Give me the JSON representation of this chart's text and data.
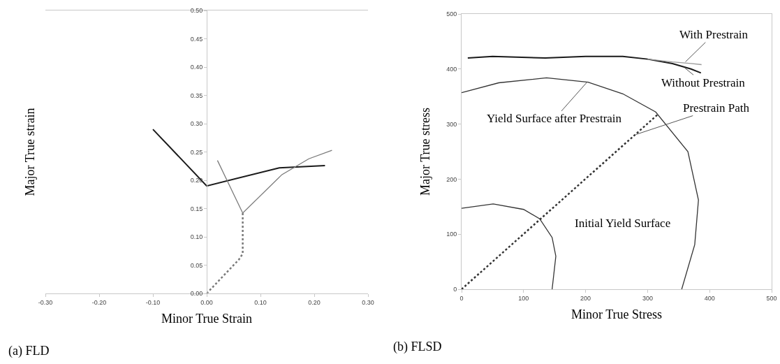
{
  "chart_data": [
    {
      "type": "line",
      "xlabel": "Minor True Strain",
      "ylabel": "Major True strain",
      "annotations": [
        "(a) FLD"
      ],
      "xlim": [
        -0.3,
        0.3
      ],
      "ylim": [
        0,
        0.5
      ],
      "xticks": [
        {
          "value": -0.3,
          "label": "-0.30"
        },
        {
          "value": -0.2,
          "label": "-0.20"
        },
        {
          "value": -0.1,
          "label": "-0.10"
        },
        {
          "value": 0,
          "label": "0.00"
        },
        {
          "value": 0.1,
          "label": "0.10"
        },
        {
          "value": 0.2,
          "label": "0.20"
        },
        {
          "value": 0.3,
          "label": "0.30"
        }
      ],
      "yticks": [
        {
          "value": 0,
          "label": "0.00"
        },
        {
          "value": 0.05,
          "label": "0.05"
        },
        {
          "value": 0.1,
          "label": "0.10"
        },
        {
          "value": 0.15,
          "label": "0.15"
        },
        {
          "value": 0.2,
          "label": "0.20"
        },
        {
          "value": 0.25,
          "label": "0.25"
        },
        {
          "value": 0.3,
          "label": "0.30"
        },
        {
          "value": 0.35,
          "label": "0.35"
        },
        {
          "value": 0.4,
          "label": "0.40"
        },
        {
          "value": 0.45,
          "label": "0.45"
        },
        {
          "value": 0.5,
          "label": "0.50"
        }
      ],
      "marker": "none",
      "series": [
        {
          "color": "#1a1a1a",
          "x": [
            -0.1,
            0,
            0.135,
            0.22
          ],
          "values": [
            0.29,
            0.19,
            0.222,
            0.226
          ],
          "line_style": "solid"
        },
        {
          "color": "#7a7a7a",
          "x": [
            0.02,
            0.067,
            0.14,
            0.19,
            0.233
          ],
          "values": [
            0.235,
            0.142,
            0.21,
            0.238,
            0.253
          ],
          "line_style": "solid"
        },
        {
          "color": "#7a7a7a",
          "x": [
            0,
            0.03,
            0.06,
            0.067,
            0.067
          ],
          "values": [
            0,
            0.03,
            0.06,
            0.07,
            0.142
          ],
          "line_style": "dotted"
        }
      ]
    },
    {
      "type": "line",
      "xlabel": "Minor True Stress",
      "ylabel": "Major True stress",
      "xlim": [
        0,
        500
      ],
      "ylim": [
        0,
        500
      ],
      "xticks": [
        0,
        100,
        200,
        300,
        400,
        500
      ],
      "yticks": [
        0,
        100,
        200,
        300,
        400,
        500
      ],
      "marker": "none",
      "annotations": [
        {
          "text": "With Prestrain",
          "x": 361,
          "y": 413
        },
        {
          "text": "Without Prestrain",
          "x": 360,
          "y": 402
        },
        {
          "text": "Yield Surface after Prestrain",
          "x": 203,
          "y": 377
        },
        {
          "text": "Prestrain Path",
          "x": 281,
          "y": 281
        },
        "Initial Yield Surface",
        "(b) FLSD"
      ],
      "series": [
        {
          "color": "#1a1a1a",
          "x": [
            10,
            50,
            135,
            200,
            260,
            300,
            340,
            370,
            386
          ],
          "values": [
            420,
            423,
            420,
            423,
            423,
            418,
            410,
            400,
            393
          ],
          "line_style": "solid"
        },
        {
          "color": "#9a9a9a",
          "x": [
            300,
            340,
            370,
            387
          ],
          "values": [
            418,
            413,
            410,
            408
          ],
          "line_style": "solid"
        },
        {
          "color": "#333333",
          "x": [
            0,
            60,
            137,
            204,
            260,
            313,
            365,
            382,
            376,
            355
          ],
          "values": [
            357,
            375,
            384,
            376,
            355,
            322,
            250,
            162,
            81,
            0
          ],
          "line_style": "solid"
        },
        {
          "color": "#333333",
          "x": [
            0,
            51,
            100,
            126,
            146,
            152,
            146
          ],
          "values": [
            147,
            155,
            145,
            128,
            94,
            60,
            0
          ],
          "line_style": "solid"
        },
        {
          "color": "#333333",
          "x": [
            0,
            316
          ],
          "values": [
            0,
            317
          ],
          "line_style": "dotted"
        }
      ]
    }
  ]
}
